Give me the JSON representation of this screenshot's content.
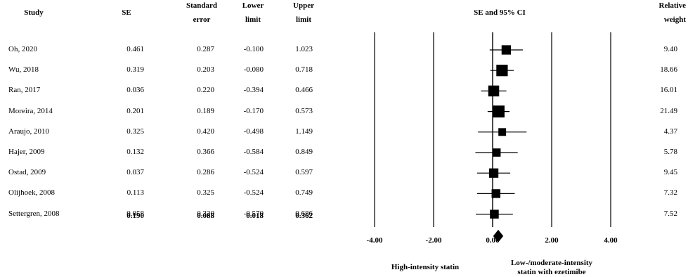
{
  "headers": {
    "study": "Study",
    "se": "SE",
    "std_err_line1": "Standard",
    "std_err_line2": "error",
    "lower_line1": "Lower",
    "lower_line2": "limit",
    "upper_line1": "Upper",
    "upper_line2": "limit",
    "plot_title": "SE and 95% CI",
    "weight_line1": "Relative",
    "weight_line2": "weight"
  },
  "rows": [
    {
      "study": "Oh, 2020",
      "se": "0.461",
      "std_error": "0.287",
      "lower": "-0.100",
      "upper": "1.023",
      "weight": "9.40"
    },
    {
      "study": "Wu, 2018",
      "se": "0.319",
      "std_error": "0.203",
      "lower": "-0.080",
      "upper": "0.718",
      "weight": "18.66"
    },
    {
      "study": "Ran, 2017",
      "se": "0.036",
      "std_error": "0.220",
      "lower": "-0.394",
      "upper": "0.466",
      "weight": "16.01"
    },
    {
      "study": "Moreira, 2014",
      "se": "0.201",
      "std_error": "0.189",
      "lower": "-0.170",
      "upper": "0.573",
      "weight": "21.49"
    },
    {
      "study": "Araujo, 2010",
      "se": "0.325",
      "std_error": "0.420",
      "lower": "-0.498",
      "upper": "1.149",
      "weight": "4.37"
    },
    {
      "study": "Hajer, 2009",
      "se": "0.132",
      "std_error": "0.366",
      "lower": "-0.584",
      "upper": "0.849",
      "weight": "5.78"
    },
    {
      "study": "Ostad, 2009",
      "se": "0.037",
      "std_error": "0.286",
      "lower": "-0.524",
      "upper": "0.597",
      "weight": "9.45"
    },
    {
      "study": "Olijhoek, 2008",
      "se": "0.113",
      "std_error": "0.325",
      "lower": "-0.524",
      "upper": "0.749",
      "weight": "7.32"
    },
    {
      "study": "Settergren, 2008",
      "se": "0.058",
      "std_error": "0.320",
      "lower": "-0.570",
      "upper": "0.686",
      "weight": "7.52"
    }
  ],
  "summary": {
    "se": "0.190",
    "std_error": "0.088",
    "lower": "0.018",
    "upper": "0.362"
  },
  "favours": {
    "left": "High-intensity statin",
    "right_line1": "Low-/moderate-intensity",
    "right_line2": "statin with ezetimibe"
  },
  "chart_data": {
    "type": "forest",
    "title": "SE and 95% CI",
    "x_ticks": [
      "-4.00",
      "-2.00",
      "0.00",
      "2.00",
      "4.00"
    ],
    "xlim": [
      -4,
      4
    ],
    "studies": [
      {
        "name": "Oh, 2020",
        "estimate": 0.461,
        "lower": -0.1,
        "upper": 1.023,
        "weight": 9.4
      },
      {
        "name": "Wu, 2018",
        "estimate": 0.319,
        "lower": -0.08,
        "upper": 0.718,
        "weight": 18.66
      },
      {
        "name": "Ran, 2017",
        "estimate": 0.036,
        "lower": -0.394,
        "upper": 0.466,
        "weight": 16.01
      },
      {
        "name": "Moreira, 2014",
        "estimate": 0.201,
        "lower": -0.17,
        "upper": 0.573,
        "weight": 21.49
      },
      {
        "name": "Araujo, 2010",
        "estimate": 0.325,
        "lower": -0.498,
        "upper": 1.149,
        "weight": 4.37
      },
      {
        "name": "Hajer, 2009",
        "estimate": 0.132,
        "lower": -0.584,
        "upper": 0.849,
        "weight": 5.78
      },
      {
        "name": "Ostad, 2009",
        "estimate": 0.037,
        "lower": -0.524,
        "upper": 0.597,
        "weight": 9.45
      },
      {
        "name": "Olijhoek, 2008",
        "estimate": 0.113,
        "lower": -0.524,
        "upper": 0.749,
        "weight": 7.32
      },
      {
        "name": "Settergren, 2008",
        "estimate": 0.058,
        "lower": -0.57,
        "upper": 0.686,
        "weight": 7.52
      }
    ],
    "pooled": {
      "estimate": 0.19,
      "lower": 0.018,
      "upper": 0.362
    },
    "colors": {
      "marker": "#000000",
      "line": "#000000"
    }
  }
}
